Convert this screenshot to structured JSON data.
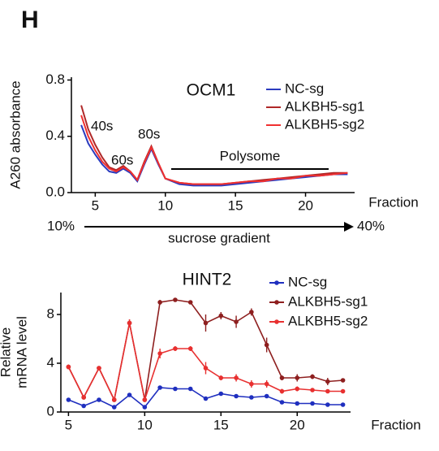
{
  "panel_label": "H",
  "chart_data": [
    {
      "type": "line",
      "title": "OCM1",
      "y_label": "A260 absorbance",
      "x_label": "Fraction",
      "x": [
        4,
        4.5,
        5,
        5.5,
        6,
        6.5,
        7,
        7.5,
        8,
        8.5,
        9,
        9.5,
        10,
        11,
        12,
        13,
        14,
        15,
        16,
        17,
        18,
        19,
        20,
        21,
        22,
        23
      ],
      "series": [
        {
          "name": "NC-sg",
          "color": "#2b3bbf",
          "values": [
            0.48,
            0.35,
            0.27,
            0.2,
            0.15,
            0.14,
            0.17,
            0.14,
            0.08,
            0.2,
            0.31,
            0.2,
            0.1,
            0.06,
            0.05,
            0.05,
            0.05,
            0.06,
            0.07,
            0.08,
            0.09,
            0.1,
            0.11,
            0.12,
            0.13,
            0.13
          ]
        },
        {
          "name": "ALKBH5-sg1",
          "color": "#b02828",
          "values": [
            0.62,
            0.45,
            0.34,
            0.25,
            0.18,
            0.16,
            0.19,
            0.15,
            0.09,
            0.22,
            0.33,
            0.21,
            0.1,
            0.07,
            0.06,
            0.06,
            0.06,
            0.07,
            0.08,
            0.09,
            0.1,
            0.11,
            0.12,
            0.13,
            0.14,
            0.14
          ]
        },
        {
          "name": "ALKBH5-sg2",
          "color": "#f03030",
          "values": [
            0.55,
            0.4,
            0.3,
            0.22,
            0.17,
            0.15,
            0.18,
            0.15,
            0.09,
            0.21,
            0.32,
            0.21,
            0.1,
            0.07,
            0.06,
            0.06,
            0.06,
            0.07,
            0.08,
            0.08,
            0.1,
            0.1,
            0.12,
            0.12,
            0.13,
            0.14
          ]
        }
      ],
      "xlim": [
        3.3,
        23.5
      ],
      "ylim": [
        0,
        0.82
      ],
      "xticks": [
        5,
        10,
        15,
        20
      ],
      "yticks": [
        {
          "value": 0,
          "label": "0.0"
        },
        0.4,
        0.8
      ],
      "annotations": [
        "40s",
        "60s",
        "80s",
        "Polysome"
      ],
      "gradient": {
        "start": "10%",
        "end": "40%",
        "label": "sucrose gradient"
      },
      "legend": "upper right",
      "markers": false
    },
    {
      "type": "line",
      "title": "HINT2",
      "y_label": [
        "Relative",
        "mRNA level"
      ],
      "x_label": "Fraction",
      "x": [
        5,
        6,
        7,
        8,
        9,
        10,
        11,
        12,
        13,
        14,
        15,
        16,
        17,
        18,
        19,
        20,
        21,
        22,
        23
      ],
      "series": [
        {
          "name": "NC-sg",
          "color": "#1f2fbf",
          "values": [
            1.0,
            0.5,
            1.0,
            0.4,
            1.4,
            0.4,
            2.0,
            1.9,
            1.9,
            1.1,
            1.5,
            1.3,
            1.2,
            1.3,
            0.8,
            0.7,
            0.7,
            0.6,
            0.6
          ],
          "errors": [
            0.1,
            0,
            0.1,
            0,
            0.1,
            0,
            0.1,
            0.15,
            0.1,
            0.1,
            0.1,
            0.1,
            0.05,
            0.1,
            0.05,
            0.05,
            0.05,
            0.05,
            0.05
          ]
        },
        {
          "name": "ALKBH5-sg1",
          "color": "#8e1f1f",
          "values": [
            3.7,
            1.2,
            3.6,
            1.0,
            7.3,
            1.0,
            9.0,
            9.2,
            9.0,
            7.3,
            7.9,
            7.4,
            8.2,
            5.5,
            2.8,
            2.8,
            2.9,
            2.5,
            2.6
          ],
          "errors": [
            0.2,
            0,
            0.1,
            0,
            0.3,
            0,
            0.2,
            0.1,
            0.1,
            0.7,
            0.3,
            0.5,
            0.3,
            0.6,
            0.2,
            0.3,
            0.2,
            0.3,
            0
          ]
        },
        {
          "name": "ALKBH5-sg2",
          "color": "#e83030",
          "values": [
            3.7,
            1.2,
            3.6,
            1.0,
            7.3,
            1.0,
            4.8,
            5.2,
            5.2,
            3.6,
            2.8,
            2.8,
            2.3,
            2.3,
            1.7,
            1.9,
            1.8,
            1.7,
            1.7
          ],
          "errors": [
            0.2,
            0,
            0.1,
            0,
            0.3,
            0,
            0.4,
            0.2,
            0.2,
            0.5,
            0.2,
            0.3,
            0.3,
            0.3,
            0.2,
            0.2,
            0.1,
            0.1,
            0.1
          ]
        }
      ],
      "xlim": [
        4.5,
        23.5
      ],
      "ylim": [
        0,
        9.8
      ],
      "xticks": [
        5,
        10,
        15,
        20
      ],
      "yticks": [
        0,
        4,
        8
      ],
      "legend": "upper right",
      "markers": true
    }
  ]
}
